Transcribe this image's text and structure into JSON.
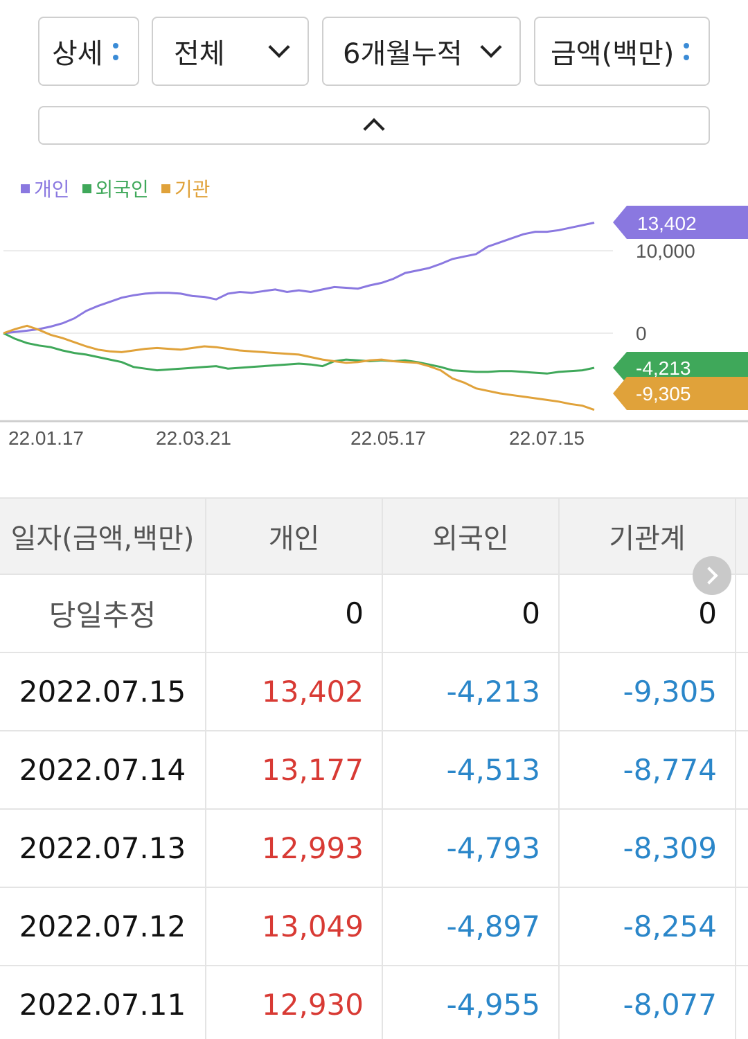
{
  "filters": {
    "detail": "상세",
    "scope": "전체",
    "period": "6개월누적",
    "unit": "금액(백만)"
  },
  "legend": [
    {
      "label": "개인",
      "color": "#8a78e0"
    },
    {
      "label": "외국인",
      "color": "#3fa85a"
    },
    {
      "label": "기관",
      "color": "#e0a23a"
    }
  ],
  "chart_data": {
    "type": "line",
    "x_tick_labels": [
      "22.01.17",
      "22.03.21",
      "22.05.17",
      "22.07.15"
    ],
    "y_tick_labels": [
      "10,000",
      "0"
    ],
    "ylim": [
      -9500,
      14000
    ],
    "series": [
      {
        "name": "개인",
        "color": "#8a78e0",
        "last_label": "13,402",
        "values": [
          0,
          150,
          300,
          500,
          800,
          1200,
          1800,
          2700,
          3300,
          3800,
          4300,
          4600,
          4800,
          4900,
          4900,
          4800,
          4500,
          4400,
          4100,
          4800,
          5000,
          4900,
          5100,
          5300,
          5000,
          5200,
          5000,
          5300,
          5600,
          5500,
          5400,
          5800,
          6100,
          6600,
          7300,
          7600,
          7900,
          8400,
          9000,
          9300,
          9600,
          10500,
          11000,
          11500,
          12000,
          12300,
          12300,
          12500,
          12800,
          13100,
          13400
        ]
      },
      {
        "name": "외국인",
        "color": "#3fa85a",
        "last_label": "-4,213",
        "values": [
          0,
          -700,
          -1200,
          -1500,
          -1700,
          -2100,
          -2400,
          -2600,
          -2900,
          -3200,
          -3500,
          -4100,
          -4300,
          -4500,
          -4400,
          -4300,
          -4200,
          -4100,
          -4000,
          -4300,
          -4200,
          -4100,
          -4000,
          -3900,
          -3800,
          -3700,
          -3800,
          -4000,
          -3400,
          -3200,
          -3300,
          -3400,
          -3300,
          -3400,
          -3300,
          -3500,
          -3800,
          -4100,
          -4500,
          -4600,
          -4700,
          -4700,
          -4600,
          -4600,
          -4700,
          -4800,
          -4900,
          -4700,
          -4600,
          -4500,
          -4200
        ]
      },
      {
        "name": "기관",
        "color": "#e0a23a",
        "last_label": "-9,305",
        "values": [
          0,
          500,
          900,
          400,
          -200,
          -600,
          -1100,
          -1600,
          -2000,
          -2200,
          -2300,
          -2100,
          -1900,
          -1800,
          -1900,
          -2000,
          -1800,
          -1600,
          -1700,
          -1900,
          -2100,
          -2200,
          -2300,
          -2400,
          -2500,
          -2600,
          -2900,
          -3200,
          -3400,
          -3600,
          -3500,
          -3300,
          -3200,
          -3400,
          -3500,
          -3600,
          -4000,
          -4500,
          -5500,
          -6000,
          -6700,
          -7000,
          -7300,
          -7500,
          -7700,
          -7900,
          -8100,
          -8300,
          -8600,
          -8800,
          -9305
        ]
      }
    ]
  },
  "table": {
    "headers": [
      "일자(금액,백만)",
      "개인",
      "외국인",
      "기관계"
    ],
    "rows": [
      {
        "date": "당일추정",
        "individual": "0",
        "foreign": "0",
        "institution": "0"
      },
      {
        "date": "2022.07.15",
        "individual": "13,402",
        "foreign": "-4,213",
        "institution": "-9,305"
      },
      {
        "date": "2022.07.14",
        "individual": "13,177",
        "foreign": "-4,513",
        "institution": "-8,774"
      },
      {
        "date": "2022.07.13",
        "individual": "12,993",
        "foreign": "-4,793",
        "institution": "-8,309"
      },
      {
        "date": "2022.07.12",
        "individual": "13,049",
        "foreign": "-4,897",
        "institution": "-8,254"
      },
      {
        "date": "2022.07.11",
        "individual": "12,930",
        "foreign": "-4,955",
        "institution": "-8,077"
      }
    ]
  }
}
